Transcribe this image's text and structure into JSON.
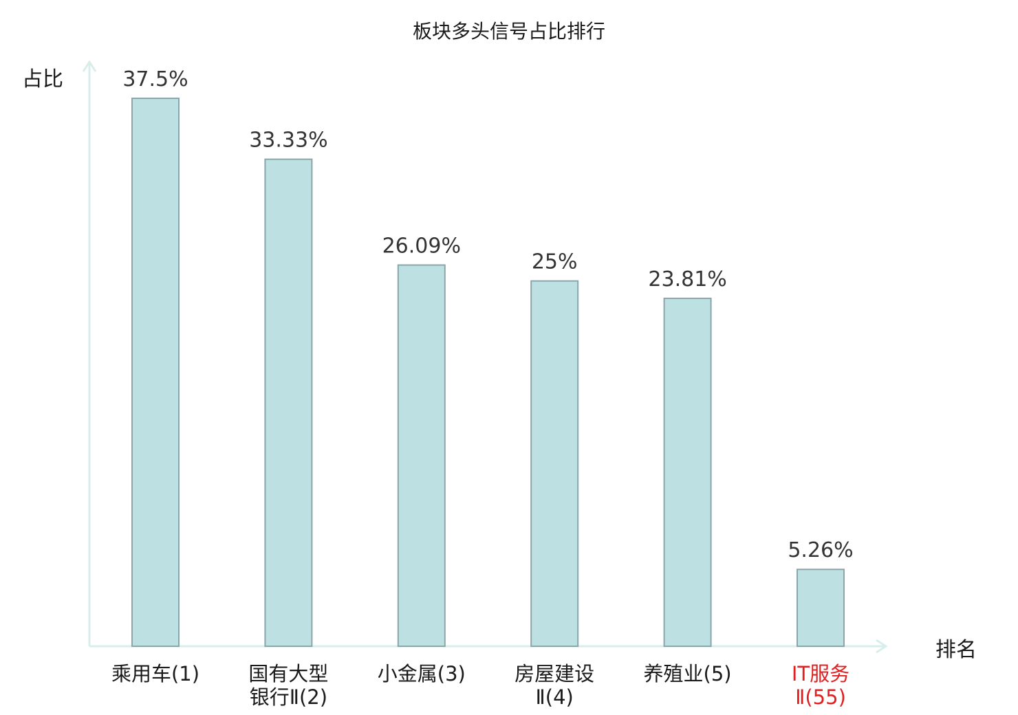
{
  "chart_data": {
    "type": "bar",
    "title": "板块多头信号占比排行",
    "ylabel": "占比",
    "xlabel": "排名",
    "ylim": [
      0,
      40
    ],
    "grid": false,
    "categories": [
      {
        "name": "乘用车",
        "rank": "(1)",
        "highlight": false
      },
      {
        "name": "国有大型银行Ⅱ",
        "rank": "(2)",
        "highlight": false
      },
      {
        "name": "小金属",
        "rank": "(3)",
        "highlight": false
      },
      {
        "name": "房屋建设Ⅱ",
        "rank": "(4)",
        "highlight": false
      },
      {
        "name": "养殖业",
        "rank": "(5)",
        "highlight": false
      },
      {
        "name": "IT服务Ⅱ",
        "rank": "(55)",
        "highlight": true
      }
    ],
    "values": [
      37.5,
      33.33,
      26.09,
      25,
      23.81,
      5.26
    ],
    "value_labels": [
      "37.5%",
      "33.33%",
      "26.09%",
      "25%",
      "23.81%",
      "5.26%"
    ]
  },
  "colors": {
    "bar_fill": "#bde0e2",
    "bar_stroke": "#8aa6aa",
    "axis": "#d8eeeb",
    "highlight": "#e02020",
    "text": "#1a1a1a"
  }
}
